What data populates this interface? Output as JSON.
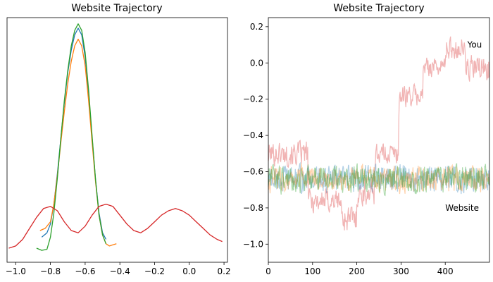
{
  "chart_data": [
    {
      "type": "line",
      "subtype": "density",
      "title": "Website Trajectory",
      "xlim": [
        -1.05,
        0.22
      ],
      "x_ticks": [
        -1.0,
        -0.8,
        -0.6,
        -0.4,
        -0.2,
        0.0,
        0.2
      ],
      "x_tick_labels": [
        "−1.0",
        "−0.8",
        "−0.6",
        "−0.4",
        "−0.2",
        "0.0",
        "0.2"
      ],
      "y_ticks_shown": false,
      "grid": false,
      "series": [
        {
          "color": "#1f77b4",
          "x": [
            -0.85,
            -0.82,
            -0.8,
            -0.78,
            -0.76,
            -0.74,
            -0.72,
            -0.7,
            -0.68,
            -0.66,
            -0.64,
            -0.62,
            -0.6,
            -0.58,
            -0.56,
            -0.54,
            -0.52,
            -0.5,
            -0.48
          ],
          "y": [
            0.05,
            0.07,
            0.11,
            0.2,
            0.34,
            0.5,
            0.66,
            0.8,
            0.9,
            0.97,
            1.0,
            0.97,
            0.87,
            0.7,
            0.5,
            0.31,
            0.16,
            0.07,
            0.04
          ]
        },
        {
          "color": "#ff7f0e",
          "x": [
            -0.86,
            -0.83,
            -0.8,
            -0.78,
            -0.76,
            -0.74,
            -0.72,
            -0.7,
            -0.68,
            -0.66,
            -0.64,
            -0.62,
            -0.6,
            -0.58,
            -0.56,
            -0.54,
            -0.52,
            -0.5,
            -0.48,
            -0.46,
            -0.44,
            -0.42
          ],
          "y": [
            0.08,
            0.09,
            0.12,
            0.2,
            0.33,
            0.48,
            0.62,
            0.75,
            0.85,
            0.92,
            0.95,
            0.92,
            0.83,
            0.67,
            0.48,
            0.3,
            0.15,
            0.06,
            0.02,
            0.01,
            0.015,
            0.02
          ]
        },
        {
          "color": "#2ca02c",
          "x": [
            -0.88,
            -0.85,
            -0.82,
            -0.8,
            -0.78,
            -0.76,
            -0.74,
            -0.72,
            -0.7,
            -0.68,
            -0.66,
            -0.64,
            -0.62,
            -0.6,
            -0.58,
            -0.56,
            -0.54,
            -0.52,
            -0.5,
            -0.48
          ],
          "y": [
            0.0,
            -0.01,
            -0.005,
            0.05,
            0.16,
            0.32,
            0.5,
            0.67,
            0.81,
            0.92,
            0.99,
            1.02,
            0.99,
            0.89,
            0.72,
            0.51,
            0.31,
            0.15,
            0.06,
            0.02
          ]
        },
        {
          "color": "#d62728",
          "x": [
            -1.04,
            -1.0,
            -0.96,
            -0.92,
            -0.88,
            -0.84,
            -0.8,
            -0.76,
            -0.72,
            -0.68,
            -0.64,
            -0.6,
            -0.56,
            -0.52,
            -0.48,
            -0.44,
            -0.4,
            -0.36,
            -0.32,
            -0.28,
            -0.24,
            -0.2,
            -0.16,
            -0.12,
            -0.08,
            -0.04,
            0.0,
            0.04,
            0.08,
            0.12,
            0.16,
            0.19
          ],
          "y": [
            0.0,
            0.01,
            0.04,
            0.09,
            0.14,
            0.18,
            0.19,
            0.17,
            0.12,
            0.08,
            0.07,
            0.1,
            0.15,
            0.19,
            0.2,
            0.19,
            0.15,
            0.11,
            0.08,
            0.07,
            0.09,
            0.12,
            0.15,
            0.17,
            0.18,
            0.17,
            0.15,
            0.12,
            0.09,
            0.06,
            0.04,
            0.03
          ]
        }
      ]
    },
    {
      "type": "line",
      "title": "Website Trajectory",
      "xlim": [
        0,
        500
      ],
      "ylim": [
        -1.1,
        0.25
      ],
      "x_ticks": [
        0,
        100,
        200,
        300,
        400
      ],
      "x_tick_labels": [
        "0",
        "100",
        "200",
        "300",
        "400"
      ],
      "y_ticks": [
        -1.0,
        -0.8,
        -0.6,
        -0.4,
        -0.2,
        0.0,
        0.2
      ],
      "y_tick_labels": [
        "−1.0",
        "−0.8",
        "−0.6",
        "−0.4",
        "−0.2",
        "0.0",
        "0.2"
      ],
      "grid": false,
      "annotations": [
        {
          "text": "You",
          "x": 450,
          "y": 0.1
        },
        {
          "text": "Website",
          "x": 400,
          "y": -0.8
        }
      ],
      "series": [
        {
          "color": "#d62728",
          "alpha": 0.35,
          "segments": [
            {
              "x_start": 0,
              "x_end": 90,
              "base": -0.5,
              "amp": 0.09
            },
            {
              "x_start": 90,
              "x_end": 165,
              "base": -0.76,
              "amp": 0.09
            },
            {
              "x_start": 165,
              "x_end": 200,
              "base": -0.86,
              "amp": 0.1
            },
            {
              "x_start": 200,
              "x_end": 240,
              "base": -0.72,
              "amp": 0.09
            },
            {
              "x_start": 240,
              "x_end": 295,
              "base": -0.5,
              "amp": 0.08
            },
            {
              "x_start": 295,
              "x_end": 350,
              "base": -0.18,
              "amp": 0.08
            },
            {
              "x_start": 350,
              "x_end": 400,
              "base": -0.02,
              "amp": 0.07
            },
            {
              "x_start": 400,
              "x_end": 445,
              "base": 0.08,
              "amp": 0.08
            },
            {
              "x_start": 445,
              "x_end": 500,
              "base": -0.03,
              "amp": 0.1
            }
          ]
        },
        {
          "color": "#1f77b4",
          "alpha": 0.35,
          "base": -0.64,
          "amp": 0.1,
          "x_start": 0,
          "x_end": 500
        },
        {
          "color": "#ff7f0e",
          "alpha": 0.35,
          "base": -0.64,
          "amp": 0.1,
          "x_start": 0,
          "x_end": 500
        },
        {
          "color": "#2ca02c",
          "alpha": 0.4,
          "base": -0.64,
          "amp": 0.1,
          "x_start": 0,
          "x_end": 500
        }
      ]
    }
  ]
}
